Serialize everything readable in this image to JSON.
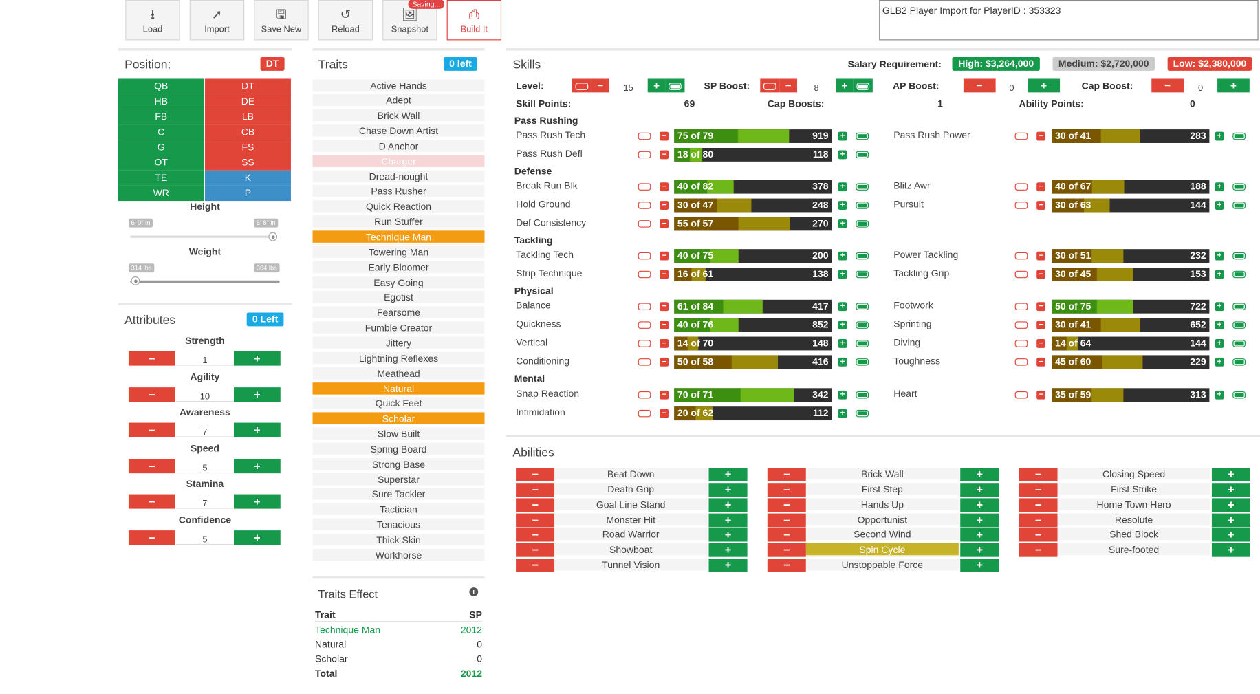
{
  "toolbar": {
    "load": "Load",
    "import": "Import",
    "save_new": "Save New",
    "reload": "Reload",
    "snapshot": "Snapshot",
    "saving": "Saving...",
    "build_it": "Build It"
  },
  "import_box": "GLB2 Player Import for PlayerID : 353323",
  "position_panel": {
    "title": "Position:",
    "current": "DT",
    "positions": [
      "QB",
      "DT",
      "HB",
      "DE",
      "FB",
      "LB",
      "C",
      "CB",
      "G",
      "FS",
      "OT",
      "SS",
      "TE",
      "K",
      "WR",
      "P"
    ],
    "height_label": "Height",
    "height_min": "6' 0\" in",
    "height_max": "6' 8\" in",
    "weight_label": "Weight",
    "weight_min": "314 lbs",
    "weight_max": "364 lbs"
  },
  "attributes": {
    "title": "Attributes",
    "left": "0 Left",
    "items": [
      {
        "name": "Strength",
        "value": "1"
      },
      {
        "name": "Agility",
        "value": "10"
      },
      {
        "name": "Awareness",
        "value": "7"
      },
      {
        "name": "Speed",
        "value": "5"
      },
      {
        "name": "Stamina",
        "value": "7"
      },
      {
        "name": "Confidence",
        "value": "5"
      }
    ]
  },
  "traits": {
    "title": "Traits",
    "left": "0 left",
    "items": [
      "Active Hands",
      "Adept",
      "Brick Wall",
      "Chase Down Artist",
      "D Anchor",
      "Charger",
      "Dread-nought",
      "Pass Rusher",
      "Quick Reaction",
      "Run Stuffer",
      "Technique Man",
      "Towering Man",
      "Early Bloomer",
      "Easy Going",
      "Egotist",
      "Fearsome",
      "Fumble Creator",
      "Jittery",
      "Lightning Reflexes",
      "Meathead",
      "Natural",
      "Quick Feet",
      "Scholar",
      "Slow Built",
      "Spring Board",
      "Strong Base",
      "Superstar",
      "Sure Tackler",
      "Tactician",
      "Tenacious",
      "Thick Skin",
      "Workhorse"
    ]
  },
  "traits_effect": {
    "title": "Traits Effect",
    "col_trait": "Trait",
    "col_sp": "SP",
    "rows": [
      {
        "trait": "Technique Man",
        "sp": "2012"
      },
      {
        "trait": "Natural",
        "sp": "0"
      },
      {
        "trait": "Scholar",
        "sp": "0"
      }
    ],
    "total_label": "Total",
    "total": "2012"
  },
  "skills": {
    "title": "Skills",
    "salary_label": "Salary Requirement:",
    "salary_high": "High: $3,264,000",
    "salary_medium": "Medium: $2,720,000",
    "salary_low": "Low: $2,380,000",
    "level_label": "Level:",
    "level": "15",
    "sp_boost_label": "SP Boost:",
    "sp_boost": "8",
    "ap_boost_label": "AP Boost:",
    "ap_boost": "0",
    "cap_boost_label": "Cap Boost:",
    "cap_boost": "0",
    "skill_points_label": "Skill Points:",
    "skill_points": "69",
    "cap_boosts_label": "Cap Boosts:",
    "cap_boosts": "1",
    "ability_points_label": "Ability Points:",
    "ability_points": "0",
    "categories": {
      "pass_rushing": "Pass Rushing",
      "defense": "Defense",
      "tackling": "Tackling",
      "physical": "Physical",
      "mental": "Mental"
    },
    "items": [
      {
        "name": "Pass Rush Tech",
        "level": "75 of 79",
        "value": "919",
        "fill": 0.95,
        "green": true
      },
      {
        "name": "Pass Rush Defl",
        "level": "18 of 80",
        "value": "118",
        "fill": 0.23,
        "green": true
      },
      {
        "name": "Pass Rush Power",
        "level": "30 of 41",
        "value": "283",
        "fill": 0.73,
        "green": false
      },
      {
        "name": "Break Run Blk",
        "level": "40 of 82",
        "value": "378",
        "fill": 0.49,
        "green": true
      },
      {
        "name": "Blitz Awr",
        "level": "40 of 67",
        "value": "188",
        "fill": 0.6,
        "green": false
      },
      {
        "name": "Hold Ground",
        "level": "30 of 47",
        "value": "248",
        "fill": 0.64,
        "green": false
      },
      {
        "name": "Pursuit",
        "level": "30 of 63",
        "value": "144",
        "fill": 0.48,
        "green": false
      },
      {
        "name": "Def Consistency",
        "level": "55 of 57",
        "value": "270",
        "fill": 0.96,
        "green": false
      },
      {
        "name": "Tackling Tech",
        "level": "40 of 75",
        "value": "200",
        "fill": 0.53,
        "green": true
      },
      {
        "name": "Power Tackling",
        "level": "30 of 51",
        "value": "232",
        "fill": 0.59,
        "green": false
      },
      {
        "name": "Strip Technique",
        "level": "16 of 61",
        "value": "138",
        "fill": 0.26,
        "green": false
      },
      {
        "name": "Tackling Grip",
        "level": "30 of 45",
        "value": "153",
        "fill": 0.67,
        "green": false
      },
      {
        "name": "Balance",
        "level": "61 of 84",
        "value": "417",
        "fill": 0.73,
        "green": true
      },
      {
        "name": "Footwork",
        "level": "50 of 75",
        "value": "722",
        "fill": 0.67,
        "green": true
      },
      {
        "name": "Quickness",
        "level": "40 of 76",
        "value": "852",
        "fill": 0.53,
        "green": true
      },
      {
        "name": "Sprinting",
        "level": "30 of 41",
        "value": "652",
        "fill": 0.73,
        "green": false
      },
      {
        "name": "Vertical",
        "level": "14 of 70",
        "value": "148",
        "fill": 0.2,
        "green": false
      },
      {
        "name": "Diving",
        "level": "14 of 64",
        "value": "144",
        "fill": 0.22,
        "green": false
      },
      {
        "name": "Conditioning",
        "level": "50 of 58",
        "value": "416",
        "fill": 0.86,
        "green": false
      },
      {
        "name": "Toughness",
        "level": "45 of 60",
        "value": "229",
        "fill": 0.75,
        "green": false
      },
      {
        "name": "Snap Reaction",
        "level": "70 of 71",
        "value": "342",
        "fill": 0.99,
        "green": true
      },
      {
        "name": "Heart",
        "level": "35 of 59",
        "value": "313",
        "fill": 0.59,
        "green": false
      },
      {
        "name": "Intimidation",
        "level": "20 of 62",
        "value": "112",
        "fill": 0.32,
        "green": false
      }
    ]
  },
  "abilities": {
    "title": "Abilities",
    "col1": [
      "Beat Down",
      "Death Grip",
      "Goal Line Stand",
      "Monster Hit",
      "Road Warrior",
      "Showboat",
      "Tunnel Vision"
    ],
    "col2": [
      "Brick Wall",
      "First Step",
      "Hands Up",
      "Opportunist",
      "Second Wind",
      "Spin Cycle",
      "Unstoppable Force"
    ],
    "col3": [
      "Closing Speed",
      "First Strike",
      "Home Town Hero",
      "Resolute",
      "Shed Block",
      "Sure-footed"
    ],
    "selected": "Spin Cycle"
  },
  "colors": {
    "green": "#17994c",
    "red": "#e04538",
    "blue": "#3d8fc7",
    "orange": "#f39c12",
    "info": "#19a9e3"
  }
}
